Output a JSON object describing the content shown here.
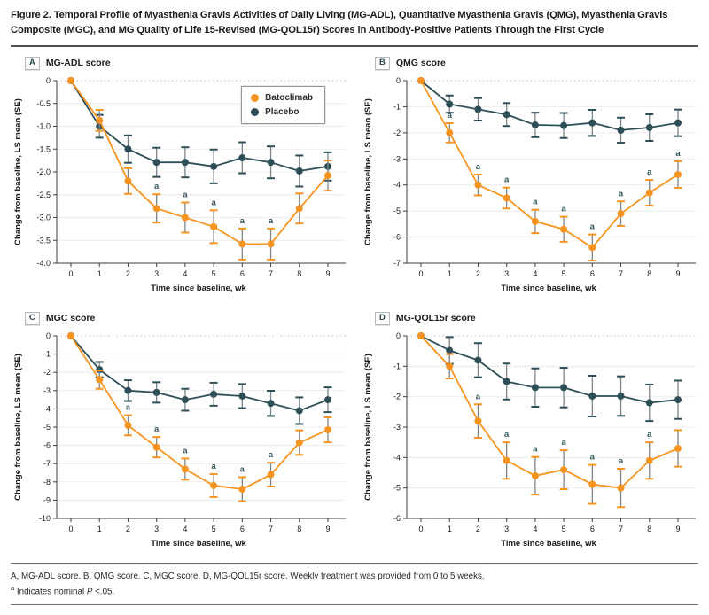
{
  "figure": {
    "title": "Figure 2. Temporal Profile of Myasthenia Gravis Activities of Daily Living (MG-ADL), Quantitative Myasthenia Gravis (QMG), Myasthenia Gravis Composite (MGC), and MG Quality of Life 15-Revised (MG-QOL15r) Scores in Antibody-Positive Patients Through the First Cycle"
  },
  "legend": {
    "items": [
      {
        "label": "Batoclimab",
        "color": "#F7941F"
      },
      {
        "label": "Placebo",
        "color": "#2F4F58"
      }
    ]
  },
  "colors": {
    "batoclimab": "#F7941F",
    "placebo": "#2F4F58",
    "error_stem": "#7d848a",
    "gridline": "#ececec",
    "zero_line": "#c2c2c2",
    "axis": "#3d3d3d",
    "tick_text": "#1a1a1a",
    "sig_text": "#33535b"
  },
  "footnotes": {
    "line1": "A, MG-ADL score. B, QMG score. C, MGC score. D, MG-QOL15r score. Weekly treatment was provided from 0 to 5 weeks.",
    "sig_sup": "a",
    "sig_pre": " Indicates nominal ",
    "sig_p": "P",
    "sig_post": " <.05."
  },
  "chart_data": [
    {
      "type": "line",
      "panel_label": "A",
      "title": "MG-ADL score",
      "xlabel": "Time since baseline, wk",
      "ylabel": "Change from baseline, LS mean (SE)",
      "x": [
        0,
        1,
        2,
        3,
        4,
        5,
        6,
        7,
        8,
        9
      ],
      "xtick_labels": [
        "0",
        "1",
        "2",
        "3",
        "4",
        "5",
        "6",
        "7",
        "8",
        "9"
      ],
      "ylim": [
        -4.0,
        0
      ],
      "yticks": [
        0,
        -0.5,
        -1.0,
        -1.5,
        -2.0,
        -2.5,
        -3.0,
        -3.5,
        -4.0
      ],
      "ytick_labels": [
        "0",
        "-0.5",
        "-1.0",
        "-1.5",
        "-2.0",
        "-2.5",
        "-3.0",
        "-3.5",
        "-4.0"
      ],
      "sig_marker": "a",
      "legend_position": "top-right-inside",
      "series": [
        {
          "name": "Batoclimab",
          "color": "#F7941F",
          "values": [
            0,
            -0.87,
            -2.2,
            -2.8,
            -3.0,
            -3.2,
            -3.58,
            -3.58,
            -2.8,
            -2.08
          ],
          "se": [
            0,
            0.23,
            0.28,
            0.31,
            0.33,
            0.36,
            0.34,
            0.34,
            0.33,
            0.33
          ],
          "sig_weeks": [
            3,
            4,
            5,
            6,
            7
          ]
        },
        {
          "name": "Placebo",
          "color": "#2F4F58",
          "values": [
            0,
            -1.0,
            -1.5,
            -1.79,
            -1.79,
            -1.88,
            -1.69,
            -1.79,
            -1.98,
            -1.88
          ],
          "se": [
            0,
            0.25,
            0.3,
            0.32,
            0.33,
            0.37,
            0.34,
            0.35,
            0.34,
            0.31
          ],
          "sig_weeks": []
        }
      ]
    },
    {
      "type": "line",
      "panel_label": "B",
      "title": "QMG score",
      "xlabel": "Time since baseline, wk",
      "ylabel": "Change from baseline, LS mean (SE)",
      "x": [
        0,
        1,
        2,
        3,
        4,
        5,
        6,
        7,
        8,
        9
      ],
      "xtick_labels": [
        "0",
        "1",
        "2",
        "3",
        "4",
        "5",
        "6",
        "7",
        "8",
        "9"
      ],
      "ylim": [
        -7,
        0
      ],
      "yticks": [
        0,
        -1,
        -2,
        -3,
        -4,
        -5,
        -6,
        -7
      ],
      "ytick_labels": [
        "0",
        "-1",
        "-2",
        "-3",
        "-4",
        "-5",
        "-6",
        "-7"
      ],
      "sig_marker": "a",
      "series": [
        {
          "name": "Batoclimab",
          "color": "#F7941F",
          "values": [
            0,
            -2.0,
            -4.0,
            -4.5,
            -5.4,
            -5.7,
            -6.4,
            -5.1,
            -4.3,
            -3.6
          ],
          "se": [
            0,
            0.37,
            0.4,
            0.4,
            0.45,
            0.48,
            0.5,
            0.47,
            0.49,
            0.51
          ],
          "sig_weeks": [
            1,
            2,
            3,
            4,
            5,
            6,
            7,
            8,
            9
          ]
        },
        {
          "name": "Placebo",
          "color": "#2F4F58",
          "values": [
            0,
            -0.9,
            -1.1,
            -1.3,
            -1.7,
            -1.72,
            -1.62,
            -1.9,
            -1.8,
            -1.62
          ],
          "se": [
            0,
            0.33,
            0.43,
            0.44,
            0.47,
            0.48,
            0.5,
            0.48,
            0.51,
            0.51
          ],
          "sig_weeks": []
        }
      ]
    },
    {
      "type": "line",
      "panel_label": "C",
      "title": "MGC score",
      "xlabel": "Time since baseline, wk",
      "ylabel": "Change from baseline, LS mean (SE)",
      "x": [
        0,
        1,
        2,
        3,
        4,
        5,
        6,
        7,
        8,
        9
      ],
      "xtick_labels": [
        "0",
        "1",
        "2",
        "3",
        "4",
        "5",
        "6",
        "7",
        "8",
        "9"
      ],
      "ylim": [
        -10,
        0
      ],
      "yticks": [
        0,
        -1,
        -2,
        -3,
        -4,
        -5,
        -6,
        -7,
        -8,
        -9,
        -10
      ],
      "ytick_labels": [
        "0",
        "-1",
        "-2",
        "-3",
        "-4",
        "-5",
        "-6",
        "-7",
        "-8",
        "-9",
        "-10"
      ],
      "sig_marker": "a",
      "series": [
        {
          "name": "Batoclimab",
          "color": "#F7941F",
          "values": [
            0,
            -2.4,
            -4.9,
            -6.1,
            -7.3,
            -8.2,
            -8.4,
            -7.6,
            -5.85,
            -5.15
          ],
          "se": [
            0,
            0.5,
            0.55,
            0.56,
            0.58,
            0.63,
            0.66,
            0.65,
            0.67,
            0.68
          ],
          "sig_weeks": [
            2,
            3,
            4,
            5,
            6,
            7
          ]
        },
        {
          "name": "Placebo",
          "color": "#2F4F58",
          "values": [
            0,
            -1.85,
            -3.0,
            -3.1,
            -3.5,
            -3.2,
            -3.3,
            -3.7,
            -4.1,
            -3.5
          ],
          "se": [
            0,
            0.42,
            0.57,
            0.56,
            0.6,
            0.63,
            0.66,
            0.69,
            0.73,
            0.68
          ],
          "sig_weeks": []
        }
      ]
    },
    {
      "type": "line",
      "panel_label": "D",
      "title": "MG-QOL15r score",
      "xlabel": "Time since baseline, wk",
      "ylabel": "Change from baseline, LS mean (SE)",
      "x": [
        0,
        1,
        2,
        3,
        4,
        5,
        6,
        7,
        8,
        9
      ],
      "xtick_labels": [
        "0",
        "1",
        "2",
        "3",
        "4",
        "5",
        "6",
        "7",
        "8",
        "9"
      ],
      "ylim": [
        -6,
        0
      ],
      "yticks": [
        0,
        -1,
        -2,
        -3,
        -4,
        -5,
        -6
      ],
      "ytick_labels": [
        "0",
        "-1",
        "-2",
        "-3",
        "-4",
        "-5",
        "-6"
      ],
      "sig_marker": "a",
      "series": [
        {
          "name": "Batoclimab",
          "color": "#F7941F",
          "values": [
            0,
            -1.0,
            -2.8,
            -4.1,
            -4.6,
            -4.4,
            -4.88,
            -5.0,
            -4.1,
            -3.7
          ],
          "se": [
            0,
            0.4,
            0.55,
            0.6,
            0.62,
            0.64,
            0.64,
            0.63,
            0.6,
            0.6
          ],
          "sig_weeks": [
            2,
            3,
            4,
            5,
            6,
            7,
            8
          ]
        },
        {
          "name": "Placebo",
          "color": "#2F4F58",
          "values": [
            0,
            -0.48,
            -0.8,
            -1.5,
            -1.7,
            -1.7,
            -1.98,
            -1.98,
            -2.2,
            -2.1
          ],
          "se": [
            0,
            0.44,
            0.56,
            0.59,
            0.63,
            0.65,
            0.67,
            0.65,
            0.6,
            0.63
          ],
          "sig_weeks": []
        }
      ]
    }
  ]
}
